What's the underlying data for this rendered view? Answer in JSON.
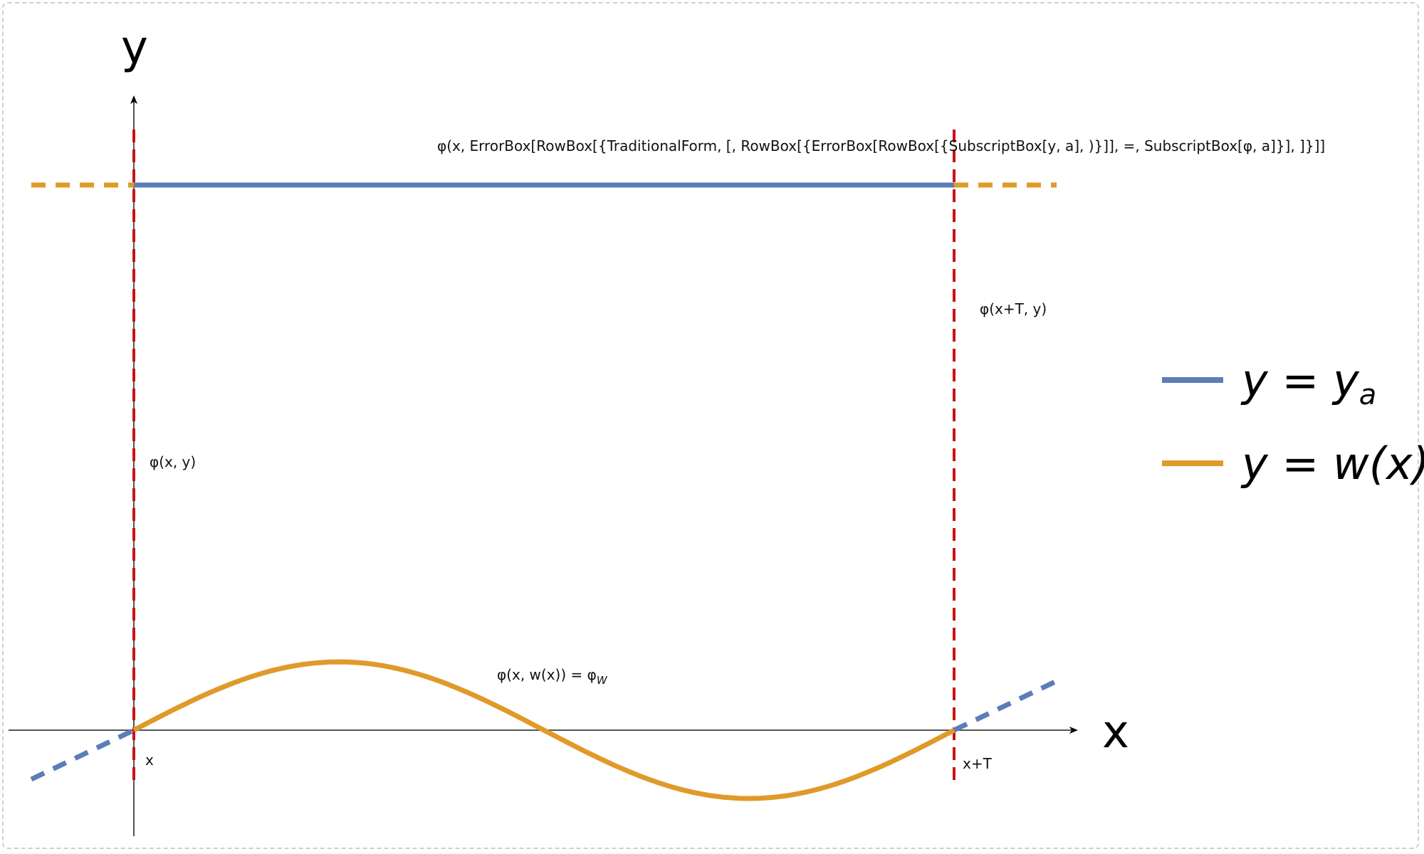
{
  "axes": {
    "x_label": "x",
    "y_label": "y"
  },
  "labels": {
    "top_annotation": "φ(x, ErrorBox[RowBox[{TraditionalForm, [, RowBox[{ErrorBox[RowBox[{SubscriptBox[y, a], )}]], =, SubscriptBox[φ, a]}], ]}]]",
    "phi_right": "φ(x+T, y)",
    "phi_left": "φ(x, y)",
    "phi_wave": "φ(x, w(x)) = φ",
    "phi_wave_sub": "W",
    "tick_x": "x",
    "tick_xT": "x+T"
  },
  "legend": [
    {
      "name": "y = y",
      "sub": "a",
      "color": "#5b7db8"
    },
    {
      "name": "y = w(x)",
      "sub": "",
      "color": "#e09a2a"
    }
  ],
  "colors": {
    "blue": "#5b7db8",
    "orange": "#e09a2a",
    "red": "#c81414",
    "axis": "#555555"
  }
}
